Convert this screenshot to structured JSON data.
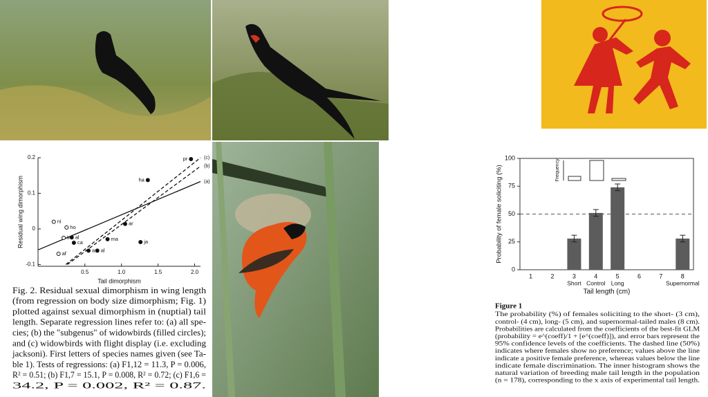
{
  "chart_data": [
    {
      "type": "scatter",
      "ylabel": "Residual wing dimorphism",
      "xlabel": "Tail dimorphism",
      "xlim": [
        -0.14,
        2.08
      ],
      "ylim": [
        -0.105,
        0.2
      ],
      "xticks": [
        0.5,
        {
          "value": 1,
          "label": "1.0"
        },
        1.5,
        {
          "value": 2,
          "label": "2.0"
        }
      ],
      "yticks": [
        0.2,
        0.1,
        0,
        -0.1
      ],
      "x": [
        0.075,
        0.25,
        0.21,
        0.14,
        0.32,
        0.35,
        0.55,
        0.67,
        0.81,
        1.05,
        1.26,
        1.36,
        1.95
      ],
      "values": [
        0.02,
        0.004,
        -0.025,
        -0.07,
        -0.024,
        -0.039,
        -0.061,
        -0.061,
        -0.029,
        0.014,
        -0.037,
        0.137,
        0.196
      ],
      "point_labels": [
        "ni",
        "ho",
        "lr",
        "af",
        "al",
        "ca",
        "ax",
        "al",
        "ma",
        "ar",
        "ja",
        "ha",
        "pr"
      ],
      "filled": [
        false,
        false,
        false,
        false,
        true,
        true,
        true,
        true,
        true,
        true,
        true,
        true,
        true
      ],
      "lines": [
        {
          "label": "(a)",
          "dashed": false,
          "x": [
            -0.14,
            2.08
          ],
          "values": [
            -0.059,
            0.133
          ]
        },
        {
          "label": "(b)",
          "dashed": true,
          "x": [
            0.26,
            2.08
          ],
          "values": [
            -0.1,
            0.176
          ]
        },
        {
          "label": "(c)",
          "dashed": true,
          "x": [
            0.24,
            2.08
          ],
          "values": [
            -0.1,
            0.2
          ]
        }
      ]
    },
    {
      "type": "bar",
      "ylabel": "Probability of female soliciting (%)",
      "xlabel": "Tail length (cm)",
      "inset_label": "Frequency",
      "color": "#5c5c5c",
      "categories": [
        "1",
        "2",
        "3",
        "4",
        "5",
        "6",
        "7",
        "8"
      ],
      "sublabels": [
        null,
        null,
        "Short",
        "Control",
        "Long",
        null,
        null,
        "Supernormal"
      ],
      "values": [
        null,
        null,
        28,
        51,
        74,
        null,
        null,
        28
      ],
      "errors": [
        null,
        null,
        3,
        3,
        3,
        null,
        null,
        3
      ],
      "reference_line": 50,
      "ylim": [
        0,
        100
      ],
      "yticks": [
        0,
        25,
        50,
        75,
        100
      ]
    }
  ],
  "captions": {
    "scatter": [
      "Fig. 2.   Residual sexual dimorphism in wing length",
      "(from regression on body size dimorphism; Fig. 1)",
      "plotted against sexual dimorphism in (nuptial) tail",
      "length. Separate regression lines refer to: (a) all spe-",
      "cies; (b) the \"subgenus\" of widowbirds (filled circles);",
      "and (c) widowbirds with flight display (i.e. excluding",
      "jacksoni). First letters of species names given (see Ta-",
      "ble 1). Tests of regressions: (a) F1,12 = 11.3, P = 0.006,",
      "R² = 0.51; (b) F1,7 = 15.1, P = 0.008, R² = 0.72; (c) F1,6 =",
      "34.2, P = 0.002, R² = 0.87."
    ],
    "bar_title": "Figure 1",
    "bar": [
      "The probability (%) of females soliciting to the short- (3 cm),",
      "control- (4 cm), long- (5 cm), and supernormal-tailed males (8 cm).",
      "Probabilities are calculated from the coefficients of the best-fit GLM",
      "(probability = e^(coeff)/1 + [e^(coeff)]), and error bars represent the",
      "95% confidence levels of the coefficients. The dashed line (50%)",
      "indicates where females show no preference; values above the line",
      "indicate a positive female preference, whereas values below the line",
      "indicate female discrimination. The inner histogram shows the",
      "natural variation of breeding male tail length in the population",
      "(n = 178), corresponding to the x axis of experimental tail length."
    ]
  }
}
